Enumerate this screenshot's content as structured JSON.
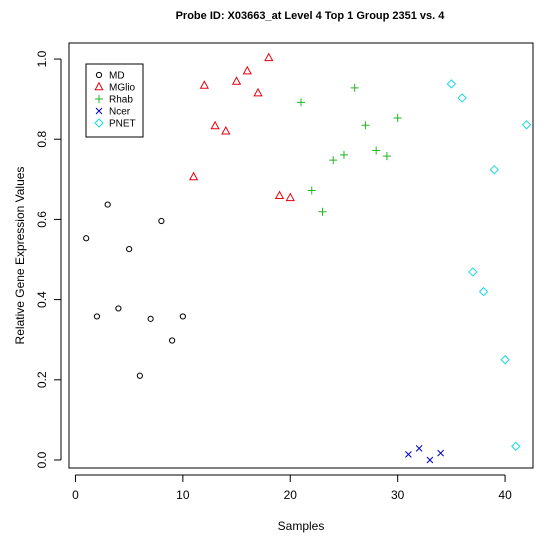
{
  "chart_data": {
    "type": "scatter",
    "title": "Probe ID: X03663_at  Level 4  Top 1 Group 2351 vs. 4",
    "xlabel": "Samples",
    "ylabel": "Relative Gene Expression Values",
    "xlim": [
      -0.6,
      42.6
    ],
    "ylim": [
      -0.02,
      1.04
    ],
    "x_ticks": [
      0,
      10,
      20,
      30,
      40
    ],
    "x_tick_labels": [
      "0",
      "10",
      "20",
      "30",
      "40"
    ],
    "y_ticks": [
      0.0,
      0.2,
      0.4,
      0.6,
      0.8,
      1.0
    ],
    "y_tick_labels": [
      "0.0",
      "0.2",
      "0.4",
      "0.6",
      "0.8",
      "1.0"
    ],
    "grid": false,
    "legend_position": "top-left",
    "series": [
      {
        "name": "MD",
        "marker": "circle",
        "color": "#000000",
        "x": [
          1,
          2,
          3,
          4,
          5,
          6,
          7,
          8,
          9,
          10
        ],
        "y": [
          0.553,
          0.358,
          0.637,
          0.378,
          0.526,
          0.21,
          0.352,
          0.596,
          0.298,
          0.358
        ]
      },
      {
        "name": "MGlio",
        "marker": "triangle",
        "color": "#e8000b",
        "x": [
          11,
          12,
          13,
          14,
          15,
          16,
          17,
          18,
          19,
          20
        ],
        "y": [
          0.706,
          0.934,
          0.833,
          0.82,
          0.944,
          0.97,
          0.915,
          1.003,
          0.659,
          0.654
        ]
      },
      {
        "name": "Rhab",
        "marker": "plus",
        "color": "#22b522",
        "x": [
          21,
          22,
          23,
          24,
          25,
          26,
          27,
          28,
          29,
          30
        ],
        "y": [
          0.892,
          0.672,
          0.619,
          0.748,
          0.761,
          0.928,
          0.835,
          0.772,
          0.758,
          0.853
        ]
      },
      {
        "name": "Ncer",
        "marker": "cross",
        "color": "#0000cc",
        "x": [
          31,
          32,
          33,
          34
        ],
        "y": [
          0.014,
          0.029,
          0.0,
          0.017
        ]
      },
      {
        "name": "PNET",
        "marker": "diamond",
        "color": "#19d9e0",
        "x": [
          35,
          36,
          37,
          38,
          39,
          40,
          41,
          42
        ],
        "y": [
          0.938,
          0.903,
          0.469,
          0.42,
          0.724,
          0.25,
          0.034,
          0.836
        ]
      }
    ]
  }
}
